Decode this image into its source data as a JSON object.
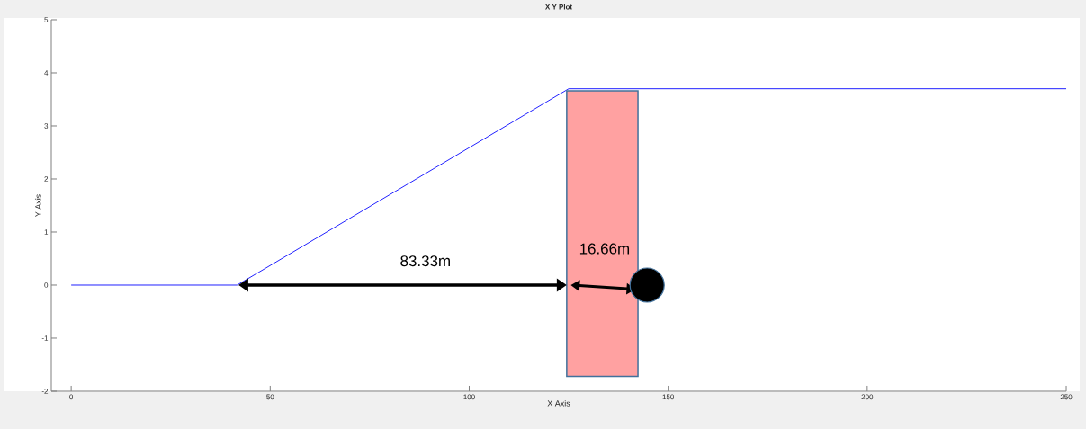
{
  "chart_data": {
    "type": "line",
    "title": "X Y Plot",
    "xlabel": "X Axis",
    "ylabel": "Y Axis",
    "x": [
      0,
      41.67,
      125,
      250
    ],
    "series": [
      {
        "color": "#2020ff",
        "values": [
          0,
          0,
          3.7,
          3.7
        ]
      }
    ],
    "xlim": [
      -5,
      250
    ],
    "ylim": [
      -2,
      5
    ],
    "xticks": [
      0,
      50,
      100,
      150,
      200,
      250
    ],
    "yticks": [
      -2,
      -1,
      0,
      1,
      2,
      3,
      4,
      5
    ],
    "annotations": [
      "83.33m",
      "16.66m"
    ]
  }
}
